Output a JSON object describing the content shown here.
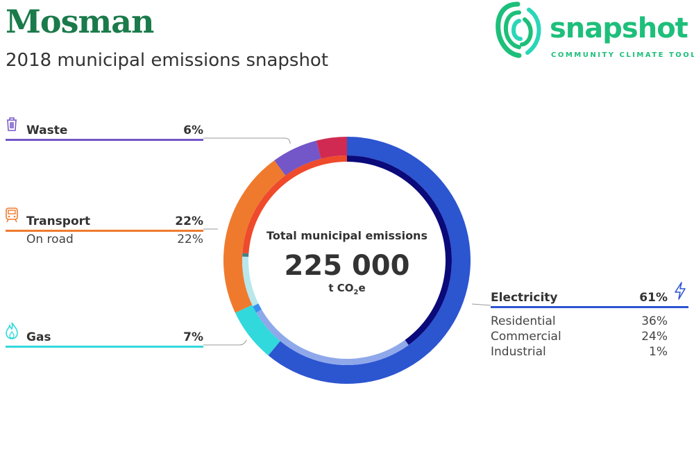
{
  "header": {
    "title": "Mosman",
    "subtitle": "2018 municipal emissions snapshot"
  },
  "logo": {
    "word": "snapshot",
    "tagline": "COMMUNITY CLIMATE TOOL"
  },
  "center": {
    "label": "Total municipal emissions",
    "value": "225 000",
    "unit_prefix": "t CO",
    "unit_sub": "2",
    "unit_suffix": "e"
  },
  "colors": {
    "waste": "#7356c8",
    "other": "#d12a52",
    "transport": "#ef7a2e",
    "transport_inner": "#ee4a2b",
    "gas": "#31d8dc",
    "gas_inner": "#b8e8ec",
    "electricity": "#2c55d0",
    "elec_residential": "#0a0a7a",
    "elec_commercial": "#8fa8ea",
    "elec_industrial": "#3a8ef0"
  },
  "categories": {
    "waste": {
      "label": "Waste",
      "pct": "6%",
      "icon": "trash-icon"
    },
    "transport": {
      "label": "Transport",
      "pct": "22%",
      "icon": "train-icon",
      "subs": [
        {
          "label": "On road",
          "pct": "22%"
        }
      ]
    },
    "gas": {
      "label": "Gas",
      "pct": "7%",
      "icon": "flame-icon"
    },
    "electricity": {
      "label": "Electricity",
      "pct": "61%",
      "icon": "lightning-icon",
      "subs": [
        {
          "label": "Residential",
          "pct": "36%"
        },
        {
          "label": "Commercial",
          "pct": "24%"
        },
        {
          "label": "Industrial",
          "pct": "1%"
        }
      ]
    }
  },
  "chart_data": {
    "type": "pie",
    "title": "Total municipal emissions",
    "total": 225000,
    "unit": "t CO2e",
    "outer_ring": [
      {
        "name": "Electricity",
        "value": 61,
        "color": "#2c55d0"
      },
      {
        "name": "Gas",
        "value": 7,
        "color": "#31d8dc"
      },
      {
        "name": "Transport",
        "value": 22,
        "color": "#ef7a2e"
      },
      {
        "name": "Waste",
        "value": 6,
        "color": "#7356c8"
      },
      {
        "name": "",
        "value": 4,
        "color": "#d12a52"
      }
    ],
    "inner_ring": [
      {
        "name": "Residential",
        "value": 36,
        "color": "#0a0a7a"
      },
      {
        "name": "Commercial",
        "value": 24,
        "color": "#8fa8ea"
      },
      {
        "name": "Industrial",
        "value": 1,
        "color": "#3a8ef0"
      },
      {
        "name": "",
        "value": 7,
        "color": "#b8e8ec"
      },
      {
        "name": "",
        "value": 0.5,
        "color": "#4a7f86"
      },
      {
        "name": "On road",
        "value": 21.5,
        "color": "#ee4a2b"
      }
    ]
  }
}
